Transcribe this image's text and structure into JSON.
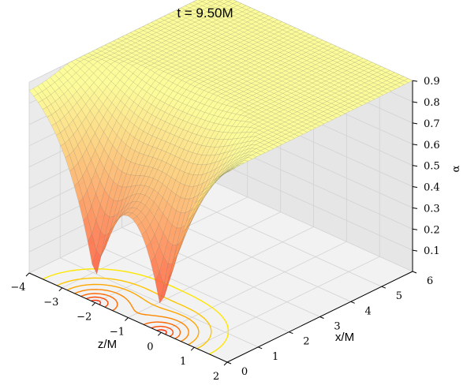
{
  "chart_data": {
    "type": "surface3d",
    "title": "t = 9.50M",
    "xlabel": "z/M",
    "ylabel": "x/M",
    "zlabel": "α",
    "xlim": [
      -4,
      2
    ],
    "ylim": [
      0,
      6
    ],
    "zlim": [
      0.0,
      0.9
    ],
    "x_ticks": [
      "−4",
      "−3",
      "−2",
      "−1",
      "0",
      "1",
      "2"
    ],
    "y_ticks": [
      "0",
      "1",
      "2",
      "3",
      "4",
      "5",
      "6"
    ],
    "z_ticks": [
      "0.1",
      "0.2",
      "0.3",
      "0.4",
      "0.5",
      "0.6",
      "0.7",
      "0.8",
      "0.9"
    ],
    "x_tick_values": [
      -4,
      -3,
      -2,
      -1,
      0,
      1,
      2
    ],
    "y_tick_values": [
      0,
      1,
      2,
      3,
      4,
      5,
      6
    ],
    "z_tick_values": [
      0.1,
      0.2,
      0.3,
      0.4,
      0.5,
      0.6,
      0.7,
      0.8,
      0.9
    ],
    "punctures": [
      {
        "z": -2.0,
        "x": 0.0,
        "min_alpha": 0.05
      },
      {
        "z": 0.0,
        "x": 0.0,
        "min_alpha": 0.03
      }
    ],
    "contour_levels_on_floor": [
      0.2,
      0.3,
      0.4,
      0.5,
      0.6,
      0.7,
      0.8
    ],
    "colormap": "autumn",
    "colormap_colors": [
      "#ff0000",
      "#ff8000",
      "#ffff00"
    ],
    "grid": true
  }
}
